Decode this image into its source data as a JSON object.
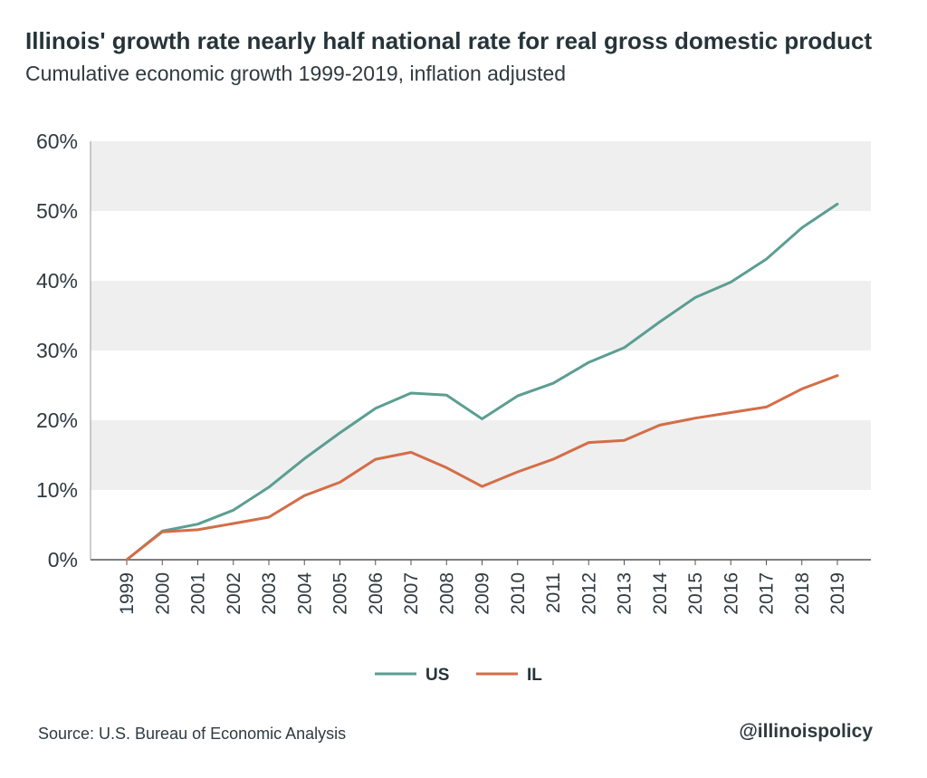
{
  "chart_data": {
    "type": "line",
    "title": "Illinois' growth rate nearly half national rate for real gross domestic product",
    "subtitle": "Cumulative economic growth 1999-2019, inflation adjusted",
    "xlabel": "",
    "ylabel": "",
    "ylim": [
      0,
      60
    ],
    "y_ticks": [
      "0%",
      "10%",
      "20%",
      "30%",
      "40%",
      "50%",
      "60%"
    ],
    "categories": [
      "1999",
      "2000",
      "2001",
      "2002",
      "2003",
      "2004",
      "2005",
      "2006",
      "2007",
      "2008",
      "2009",
      "2010",
      "2011",
      "2012",
      "2013",
      "2014",
      "2015",
      "2016",
      "2017",
      "2018",
      "2019"
    ],
    "series": [
      {
        "name": "US",
        "color": "#5b9e92",
        "values": [
          0,
          4.1,
          5.1,
          7.1,
          10.4,
          14.5,
          18.2,
          21.7,
          23.9,
          23.6,
          20.2,
          23.5,
          25.3,
          28.3,
          30.4,
          34.1,
          37.6,
          39.8,
          43.1,
          47.6,
          51.0
        ]
      },
      {
        "name": "IL",
        "color": "#d46d48",
        "values": [
          0,
          4.0,
          4.3,
          5.2,
          6.1,
          9.2,
          11.1,
          14.4,
          15.4,
          13.2,
          10.5,
          12.6,
          14.4,
          16.8,
          17.1,
          19.3,
          20.3,
          21.1,
          21.9,
          24.5,
          26.4
        ]
      }
    ],
    "grid": "alternating horizontal bands",
    "legend_position": "bottom-center"
  },
  "footer": {
    "source": "Source: U.S. Bureau of Economic Analysis",
    "handle": "@illinoispolicy"
  }
}
